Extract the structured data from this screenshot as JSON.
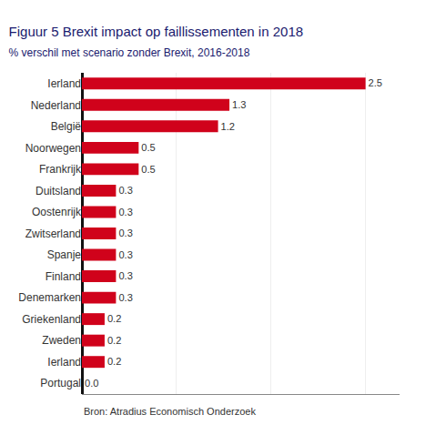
{
  "chart_data": {
    "type": "bar",
    "orientation": "horizontal",
    "title": "Figuur 5 Brexit impact op faillissementen in 2018",
    "subtitle": "% verschil met scenario zonder Brexit, 2016-2018",
    "annotations": [
      "Bron: Atradius Economisch Onderzoek"
    ],
    "categories": [
      "Ierland",
      "Nederland",
      "België",
      "Noorwegen",
      "Frankrijk",
      "Duitsland",
      "Oostenrijk",
      "Zwitserland",
      "Spanje",
      "Finland",
      "Denemarken",
      "Griekenland",
      "Zweden",
      "Ierland",
      "Portugal"
    ],
    "values": [
      2.5,
      1.3,
      1.2,
      0.5,
      0.5,
      0.3,
      0.3,
      0.3,
      0.3,
      0.3,
      0.3,
      0.2,
      0.2,
      0.2,
      0.0
    ],
    "value_labels": [
      "2.5",
      "1.3",
      "1.2",
      "0.5",
      "0.5",
      "0.3",
      "0.3",
      "0.3",
      "0.3",
      "0.3",
      "0.3",
      "0.2",
      "0.2",
      "0.2",
      "0.0"
    ],
    "data_labels": true,
    "color": "#d0021b",
    "xlim": [
      0,
      2.8
    ],
    "xticks": [
      0.833,
      1.667,
      2.5
    ],
    "grid": true,
    "tick_labels": "y"
  }
}
